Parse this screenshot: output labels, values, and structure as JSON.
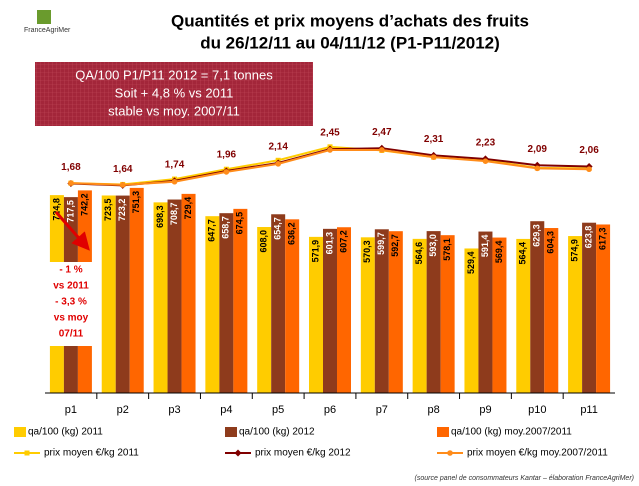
{
  "chart_data": {
    "type": "bar",
    "title": "Quantités et prix moyens d’achats des fruits",
    "subtitle": "du 26/12/11 au 04/11/12 (P1-P11/2012)",
    "logo": "FranceAgriMer",
    "box_lines": [
      "QA/100 P1/P11 2012 = 7,1 tonnes",
      "Soit + 4,8 % vs 2011",
      "stable vs moy. 2007/11"
    ],
    "annotation_lines": [
      "- 1 %",
      "vs 2011",
      "- 3,3 %",
      "vs moy",
      "07/11"
    ],
    "source": "(source panel de consommateurs Kantar – élaboration FranceAgriMer)",
    "categories": [
      "p1",
      "p2",
      "p3",
      "p4",
      "p5",
      "p6",
      "p7",
      "p8",
      "p9",
      "p10",
      "p11"
    ],
    "ylim": [
      0,
      1000
    ],
    "y2lim": [
      -3,
      3.1
    ],
    "series": [
      {
        "name": "qa/100 (kg) 2011",
        "type": "bar",
        "color": "#ffcc00",
        "values": [
          724.8,
          723.5,
          698.3,
          647.7,
          608.0,
          571.9,
          570.3,
          564.6,
          529.4,
          564.4,
          574.9
        ],
        "value_labels": [
          "724,8",
          "723,5",
          "698,3",
          "647,7",
          "608,0",
          "571,9",
          "570,3",
          "564,6",
          "529,4",
          "564,4",
          "574,9"
        ]
      },
      {
        "name": "qa/100 (kg) 2012",
        "type": "bar",
        "color": "#8e3b1c",
        "values": [
          717.5,
          723.2,
          708.7,
          658.7,
          654.7,
          601.3,
          599.7,
          593.0,
          591.4,
          629.3,
          623.8
        ],
        "value_labels": [
          "717,5",
          "723,2",
          "708,7",
          "658,7",
          "654,7",
          "601,3",
          "599,7",
          "593,0",
          "591,4",
          "629,3",
          "623,8"
        ]
      },
      {
        "name": "qa/100 (kg) moy.2007/2011",
        "type": "bar",
        "color": "#ff6600",
        "values": [
          742.2,
          751.3,
          729.4,
          674.5,
          636.2,
          607.2,
          592.7,
          578.1,
          569.4,
          604.3,
          617.3
        ],
        "value_labels": [
          "742,2",
          "751,3",
          "729,4",
          "674,5",
          "636,2",
          "607,2",
          "592,7",
          "578,1",
          "569,4",
          "604,3",
          "617,3"
        ]
      },
      {
        "name": "prix moyen €/kg 2011",
        "type": "line",
        "axis": "y2",
        "color": "#ffcc00",
        "marker": "square",
        "values": [
          1.69,
          1.66,
          1.78,
          2.0,
          2.2,
          2.5,
          2.42,
          2.27,
          2.2,
          2.03,
          2.02
        ]
      },
      {
        "name": "prix moyen €/kg 2012",
        "type": "line",
        "axis": "y2",
        "color": "#800000",
        "marker": "diamond",
        "values": [
          1.68,
          1.64,
          1.74,
          1.96,
          2.14,
          2.45,
          2.47,
          2.31,
          2.23,
          2.09,
          2.06
        ],
        "value_labels": [
          "1,68",
          "1,64",
          "1,74",
          "1,96",
          "2,14",
          "2,45",
          "2,47",
          "2,31",
          "2,23",
          "2,09",
          "2,06"
        ]
      },
      {
        "name": "prix moyen €/kg moy.2007/2011",
        "type": "line",
        "axis": "y2",
        "color": "#ff8c1a",
        "marker": "circle",
        "values": [
          1.69,
          1.65,
          1.72,
          1.94,
          2.12,
          2.43,
          2.43,
          2.27,
          2.18,
          2.02,
          2.0
        ]
      }
    ]
  }
}
